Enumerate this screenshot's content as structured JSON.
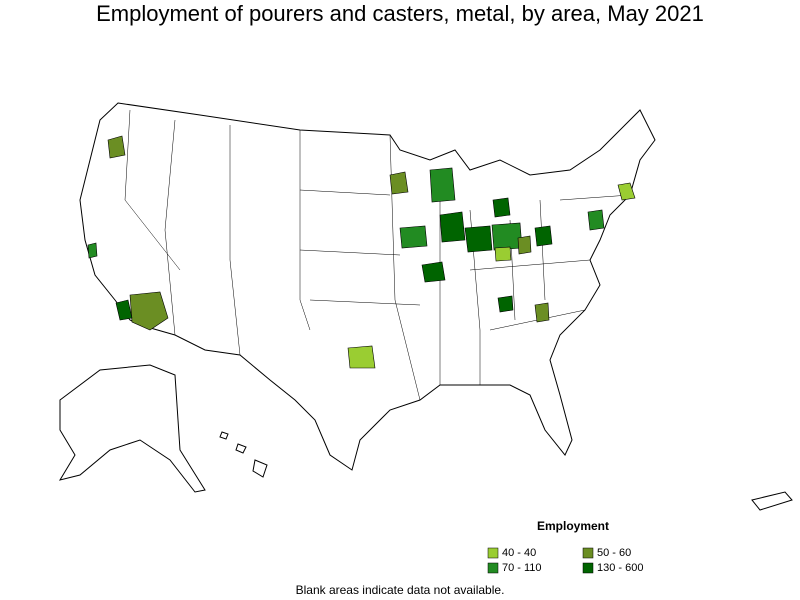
{
  "title": "Employment of pourers and casters, metal, by area, May 2021",
  "legend": {
    "title": "Employment",
    "items": [
      {
        "label": "40 - 40",
        "color": "#9acd32"
      },
      {
        "label": "50 - 60",
        "color": "#6b8e23"
      },
      {
        "label": "70 - 110",
        "color": "#228b22"
      },
      {
        "label": "130 - 600",
        "color": "#006400"
      }
    ]
  },
  "note": "Blank areas indicate data not available."
}
